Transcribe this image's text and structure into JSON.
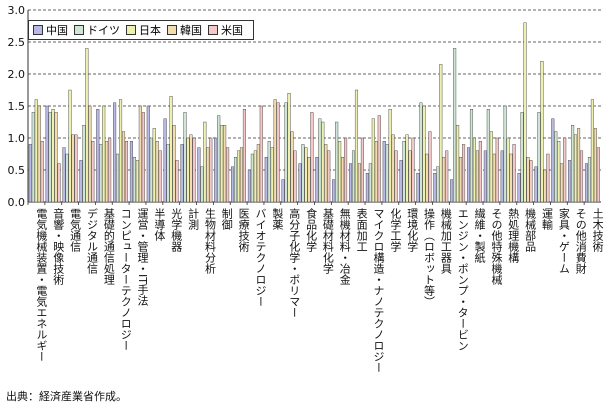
{
  "legend": [
    {
      "name": "中国",
      "color": "#b9b9e6"
    },
    {
      "name": "ドイツ",
      "color": "#cfe6d6"
    },
    {
      "name": "日本",
      "color": "#eef0b0"
    },
    {
      "name": "韓国",
      "color": "#f2dcb0"
    },
    {
      "name": "米国",
      "color": "#f4c8c8"
    }
  ],
  "source": "出典：経済産業省作成。",
  "chart_data": {
    "type": "bar",
    "ylim": [
      0,
      3.0
    ],
    "yticks": [
      "0.0",
      "0.5",
      "1.0",
      "1.5",
      "2.0",
      "2.5",
      "3.0"
    ],
    "grid": "dashed-horizontal",
    "categories": [
      "電気機械装置・電気エネルギー",
      "音響・映像技術",
      "電気通信",
      "デジタル通信",
      "基礎的通信処理",
      "コンピューターテクノロジー",
      "運営・管理・IT手法",
      "半導体",
      "光学機器",
      "計測",
      "生物材料分析",
      "制御",
      "医療技術",
      "バイオテクノロジー",
      "製薬",
      "高分子化学・ポリマー",
      "食品化学",
      "基礎材料化学",
      "無機材料・冶金",
      "表面加工",
      "マイクロ構造・ナノテクノロジー",
      "化学工学",
      "環境化学",
      "操作（ロボット等）",
      "機械加工器具",
      "エンジン・ポンプ・タービン",
      "繊維・製紙",
      "その他特殊機械",
      "熱処理機構",
      "機械部品",
      "運輸",
      "家具・ゲーム",
      "その他消費財",
      "土木技術"
    ],
    "series": [
      {
        "name": "中国",
        "values": [
          0.9,
          1.5,
          0.85,
          0.65,
          1.45,
          1.55,
          0.95,
          1.5,
          1.3,
          0.9,
          0.85,
          1.0,
          0.55,
          0.5,
          0.7,
          0.35,
          0.6,
          0.7,
          0.35,
          0.6,
          0.45,
          0.95,
          0.65,
          0.45,
          0.45,
          0.35,
          0.85,
          0.8,
          0.8,
          0.45,
          0.55,
          1.3,
          0.65,
          0.6
        ]
      },
      {
        "name": "ドイツ",
        "values": [
          1.4,
          1.4,
          0.75,
          1.2,
          0.9,
          0.75,
          0.7,
          1.0,
          0.9,
          1.4,
          0.55,
          1.35,
          0.7,
          0.75,
          0.95,
          1.55,
          0.9,
          1.3,
          1.25,
          0.8,
          0.6,
          0.9,
          0.95,
          1.55,
          0.55,
          2.4,
          1.45,
          1.45,
          1.5,
          1.4,
          1.4,
          1.1,
          1.2,
          0.7
        ]
      },
      {
        "name": "日本",
        "values": [
          1.6,
          1.45,
          1.75,
          2.4,
          1.5,
          1.6,
          0.65,
          1.15,
          1.65,
          1.0,
          1.25,
          1.2,
          0.8,
          0.8,
          0.85,
          1.7,
          0.85,
          1.25,
          0.95,
          1.75,
          1.3,
          1.45,
          1.05,
          1.5,
          2.15,
          1.2,
          1.0,
          1.1,
          1.0,
          2.8,
          2.2,
          0.95,
          1.05,
          1.6
        ]
      },
      {
        "name": "韓国",
        "values": [
          1.5,
          1.4,
          1.05,
          1.5,
          0.95,
          1.1,
          1.5,
          0.95,
          1.2,
          1.05,
          0.85,
          1.2,
          0.85,
          0.9,
          1.6,
          1.1,
          0.7,
          0.9,
          0.7,
          0.6,
          0.95,
          1.05,
          0.8,
          0.75,
          0.7,
          0.7,
          0.8,
          0.75,
          0.75,
          0.7,
          0.5,
          0.6,
          1.15,
          1.15
        ]
      },
      {
        "name": "米国",
        "values": [
          0.95,
          0.6,
          1.05,
          0.95,
          1.0,
          0.95,
          1.4,
          0.8,
          0.65,
          1.0,
          1.0,
          0.85,
          1.45,
          1.5,
          1.55,
          0.8,
          1.4,
          0.8,
          1.0,
          1.0,
          1.35,
          0.8,
          1.0,
          1.1,
          0.8,
          0.9,
          0.95,
          1.0,
          0.9,
          0.65,
          0.75,
          1.0,
          0.8,
          0.85
        ]
      }
    ]
  }
}
